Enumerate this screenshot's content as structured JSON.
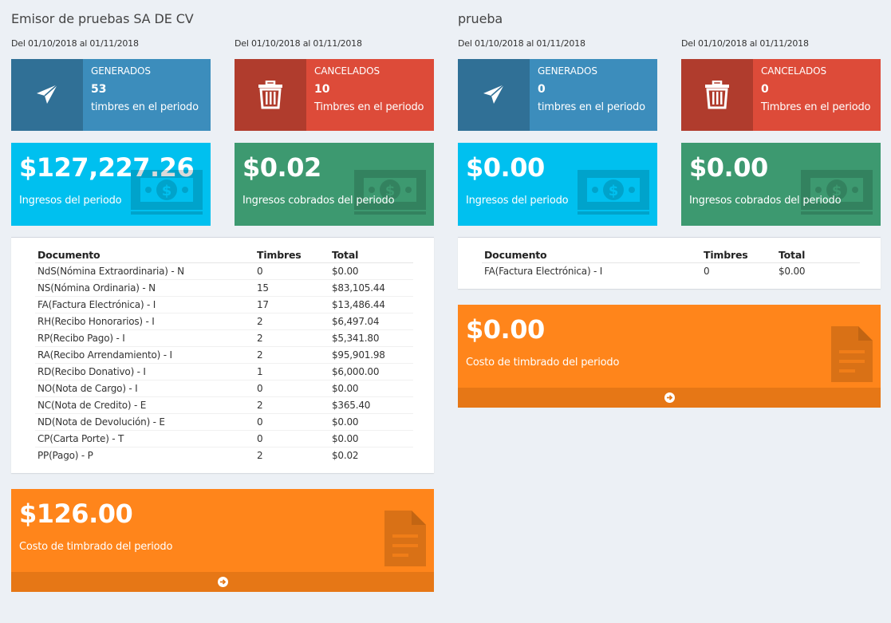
{
  "colors": {
    "page_bg": "#ecf0f5",
    "blue": "#3c8dbc",
    "red": "#dd4b39",
    "aqua": "#00c0ef",
    "green": "#3d9970",
    "orange": "#ff851b"
  },
  "companies": [
    {
      "title": "Emisor de pruebas SA DE CV",
      "period_generados": "Del 01/10/2018 al 01/11/2018",
      "period_cancelados": "Del 01/10/2018 al 01/11/2018",
      "generados": {
        "title": "GENERADOS",
        "number": "53",
        "desc": "timbres en el periodo",
        "icon": "paper-plane-icon"
      },
      "cancelados": {
        "title": "CANCELADOS",
        "number": "10",
        "desc": "Timbres en el periodo",
        "icon": "trash-icon"
      },
      "ingresos": {
        "value": "$127,227.26",
        "label": "Ingresos del periodo",
        "icon": "money-icon"
      },
      "cobrados": {
        "value": "$0.02",
        "label": "Ingresos cobrados del periodo",
        "icon": "money-icon"
      },
      "table": {
        "headers": [
          "Documento",
          "Timbres",
          "Total"
        ],
        "rows": [
          [
            "NdS(Nómina Extraordinaria) - N",
            "0",
            "$0.00"
          ],
          [
            "NS(Nómina Ordinaria) - N",
            "15",
            "$83,105.44"
          ],
          [
            "FA(Factura Electrónica) - I",
            "17",
            "$13,486.44"
          ],
          [
            "RH(Recibo Honorarios) - I",
            "2",
            "$6,497.04"
          ],
          [
            "RP(Recibo Pago) - I",
            "2",
            "$5,341.80"
          ],
          [
            "RA(Recibo Arrendamiento) - I",
            "2",
            "$95,901.98"
          ],
          [
            "RD(Recibo Donativo) - I",
            "1",
            "$6,000.00"
          ],
          [
            "NO(Nota de Cargo) - I",
            "0",
            "$0.00"
          ],
          [
            "NC(Nota de Credito) - E",
            "2",
            "$365.40"
          ],
          [
            "ND(Nota de Devolución) - E",
            "0",
            "$0.00"
          ],
          [
            "CP(Carta Porte) - T",
            "0",
            "$0.00"
          ],
          [
            "PP(Pago) - P",
            "2",
            "$0.02"
          ]
        ]
      },
      "costo": {
        "value": "$126.00",
        "label": "Costo de timbrado del periodo",
        "icon": "file-text-icon"
      }
    },
    {
      "title": "prueba",
      "period_generados": "Del 01/10/2018 al 01/11/2018",
      "period_cancelados": "Del 01/10/2018 al 01/11/2018",
      "generados": {
        "title": "GENERADOS",
        "number": "0",
        "desc": "timbres en el periodo",
        "icon": "paper-plane-icon"
      },
      "cancelados": {
        "title": "CANCELADOS",
        "number": "0",
        "desc": "Timbres en el periodo",
        "icon": "trash-icon"
      },
      "ingresos": {
        "value": "$0.00",
        "label": "Ingresos del periodo",
        "icon": "money-icon"
      },
      "cobrados": {
        "value": "$0.00",
        "label": "Ingresos cobrados del periodo",
        "icon": "money-icon"
      },
      "table": {
        "headers": [
          "Documento",
          "Timbres",
          "Total"
        ],
        "rows": [
          [
            "FA(Factura Electrónica) - I",
            "0",
            "$0.00"
          ]
        ]
      },
      "costo": {
        "value": "$0.00",
        "label": "Costo de timbrado del periodo",
        "icon": "file-text-icon"
      }
    }
  ]
}
